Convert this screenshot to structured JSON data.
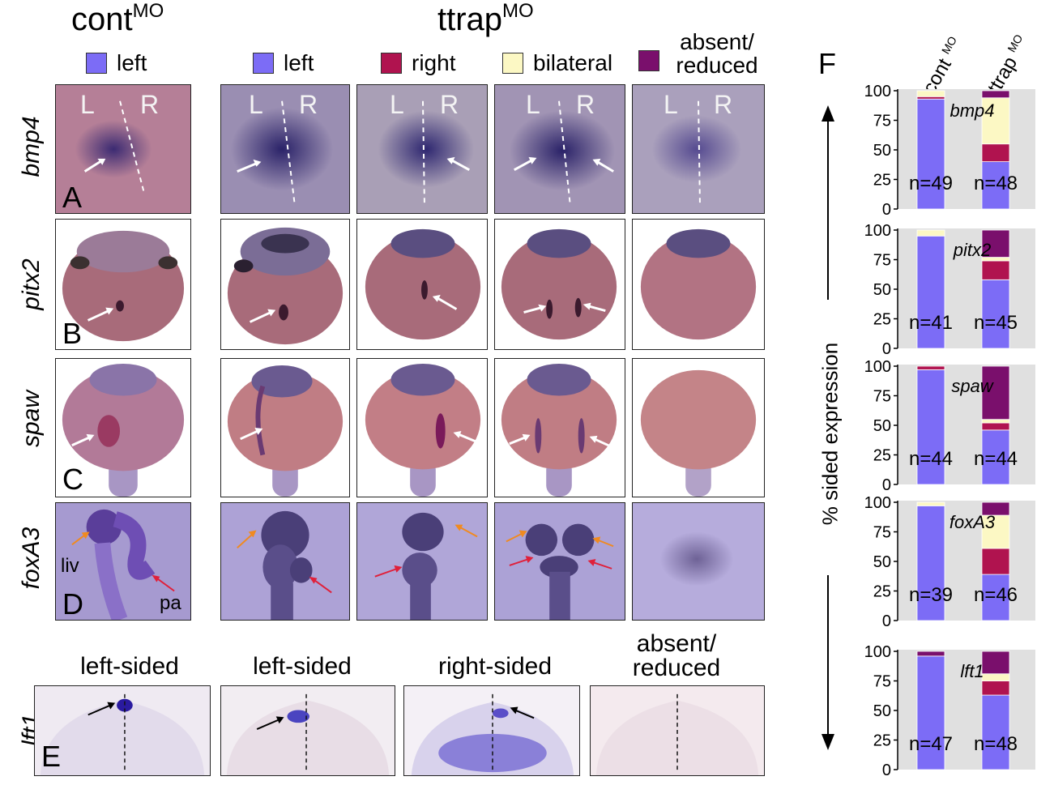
{
  "headers": {
    "cont": "cont",
    "cont_sup": "MO",
    "ttrap": "ttrap",
    "ttrap_sup": "MO"
  },
  "legend": {
    "cont_left": "left",
    "ttrap_left": "left",
    "right": "right",
    "bilateral": "bilateral",
    "absent_line1": "absent/",
    "absent_line2": "reduced"
  },
  "genes": [
    "bmp4",
    "pitx2",
    "spaw",
    "foxA3",
    "lft1"
  ],
  "panel_letters": [
    "A",
    "B",
    "C",
    "D",
    "E",
    "F"
  ],
  "bmp4_marks": {
    "L": "L",
    "R": "R"
  },
  "foxa3_labels": {
    "liv": "liv",
    "pa": "pa"
  },
  "row_e_headers": {
    "col1": "left-sided",
    "col2": "left-sided",
    "col3": "right-sided",
    "col4_line1": "absent/",
    "col4_line2": "reduced"
  },
  "colors": {
    "left": "#7c6cf6",
    "right": "#b0134f",
    "bilateral": "#fcf8c4",
    "absent": "#7a0f6c",
    "chart_bg": "#e0e0e0"
  },
  "chart_data": {
    "type": "bar",
    "stacked": true,
    "ylabel": "% sided expression",
    "column_labels": [
      {
        "name": "cont",
        "sup": "MO"
      },
      {
        "name": "ttrap",
        "sup": "MO"
      }
    ],
    "yticks": [
      0,
      25,
      50,
      75,
      100
    ],
    "ylim": [
      0,
      100
    ],
    "segment_order": [
      "left",
      "right",
      "bilateral",
      "absent/reduced"
    ],
    "panels": [
      {
        "gene": "bmp4",
        "bars": [
          {
            "group": "cont",
            "n_label": "n=49",
            "left": 93,
            "right": 2,
            "bilateral": 5,
            "absent": 0
          },
          {
            "group": "ttrap",
            "n_label": "n=48",
            "left": 40,
            "right": 15,
            "bilateral": 39,
            "absent": 6
          }
        ]
      },
      {
        "gene": "pitx2",
        "bars": [
          {
            "group": "cont",
            "n_label": "n=41",
            "left": 95,
            "right": 0,
            "bilateral": 5,
            "absent": 0
          },
          {
            "group": "ttrap",
            "n_label": "n=45",
            "left": 58,
            "right": 16,
            "bilateral": 3,
            "absent": 23
          }
        ]
      },
      {
        "gene": "spaw",
        "bars": [
          {
            "group": "cont",
            "n_label": "n=44",
            "left": 97,
            "right": 3,
            "bilateral": 0,
            "absent": 0
          },
          {
            "group": "ttrap",
            "n_label": "n=44",
            "left": 46,
            "right": 6,
            "bilateral": 3,
            "absent": 45
          }
        ]
      },
      {
        "gene": "foxA3",
        "bars": [
          {
            "group": "cont",
            "n_label": "n=39",
            "left": 97,
            "right": 0,
            "bilateral": 3,
            "absent": 0
          },
          {
            "group": "ttrap",
            "n_label": "n=46",
            "left": 39,
            "right": 22,
            "bilateral": 28,
            "absent": 11
          }
        ]
      },
      {
        "gene": "lft1",
        "bars": [
          {
            "group": "cont",
            "n_label": "n=47",
            "left": 96,
            "right": 0,
            "bilateral": 0,
            "absent": 4
          },
          {
            "group": "ttrap",
            "n_label": "n=48",
            "left": 63,
            "right": 12,
            "bilateral": 6,
            "absent": 19
          }
        ]
      }
    ]
  }
}
